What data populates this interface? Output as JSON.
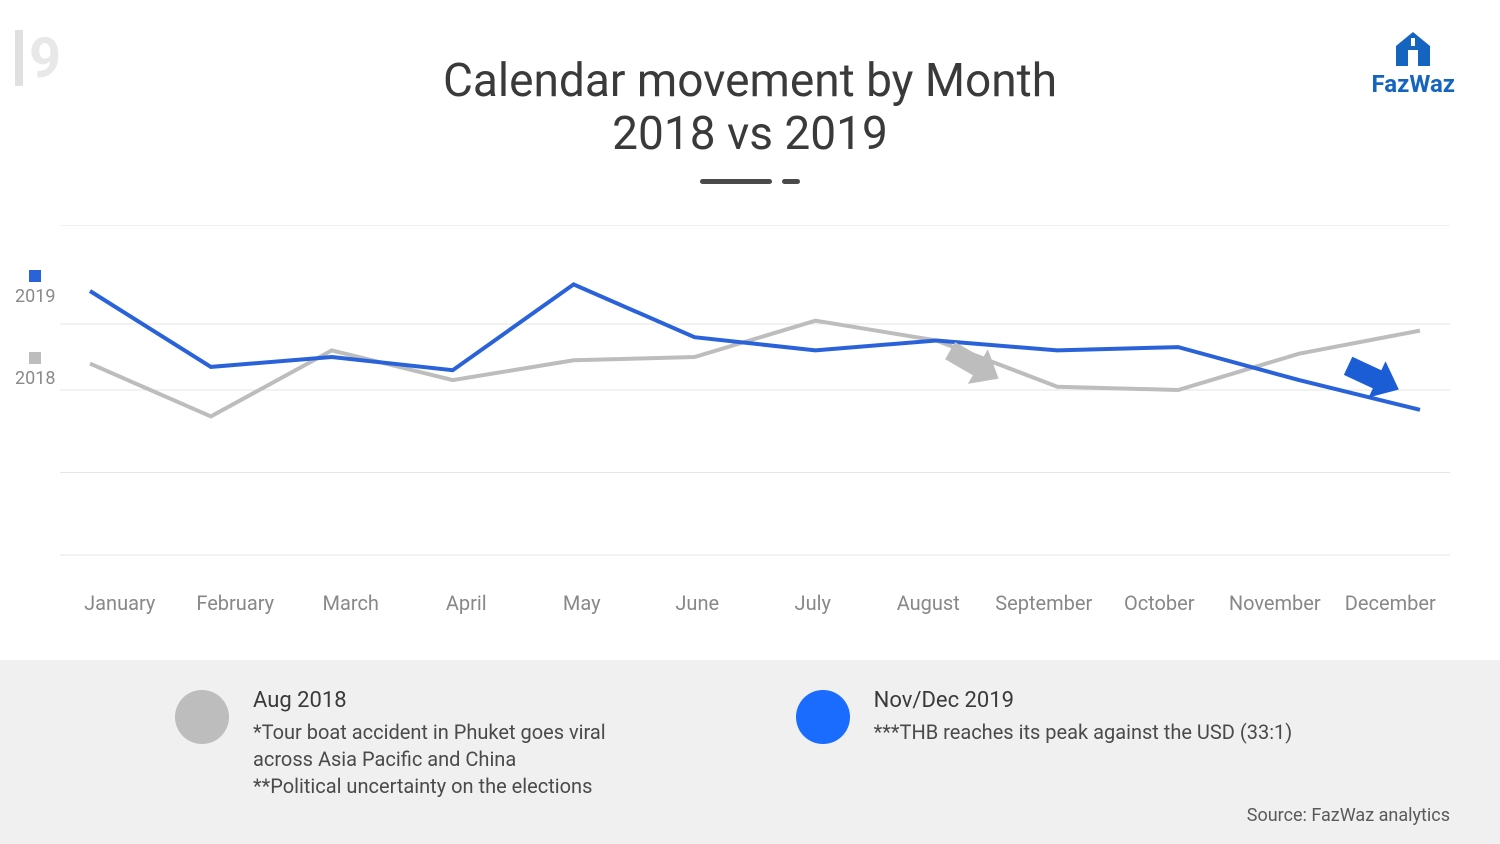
{
  "page_number": "9",
  "logo": {
    "text": "FazWaz",
    "color": "#1565c0"
  },
  "title": {
    "line1": "Calendar movement by Month",
    "line2": "2018 vs 2019",
    "fontsize": 46,
    "color": "#3a3a3a"
  },
  "chart": {
    "type": "line",
    "months": [
      "January",
      "February",
      "March",
      "April",
      "May",
      "June",
      "July",
      "August",
      "September",
      "October",
      "November",
      "December"
    ],
    "x_label_fontsize": 20,
    "x_label_color": "#888888",
    "series": {
      "2018": {
        "label": "2018",
        "color": "#bdbdbd",
        "line_width": 4,
        "values": [
          58,
          42,
          62,
          53,
          59,
          60,
          71,
          65,
          51,
          50,
          61,
          68
        ]
      },
      "2019": {
        "label": "2019",
        "color": "#2962d9",
        "line_width": 4,
        "values": [
          80,
          57,
          60,
          56,
          82,
          66,
          62,
          65,
          62,
          63,
          53,
          44
        ]
      }
    },
    "ylim": [
      0,
      100
    ],
    "gridlines_y": [
      0,
      25,
      50,
      70,
      100
    ],
    "grid_color": "#e5e5e5",
    "background_color": "#ffffff",
    "arrows": {
      "2018": {
        "x_index": 7.3,
        "y": 58,
        "angle": 30,
        "color": "#bdbdbd"
      },
      "2019": {
        "x_index": 10.6,
        "y": 54,
        "angle": 25,
        "color": "#1a5dd4"
      }
    }
  },
  "legend": {
    "items": [
      {
        "year": "2019",
        "swatch_color": "#2962d9"
      },
      {
        "year": "2018",
        "swatch_color": "#bdbdbd"
      }
    ],
    "fontsize": 18
  },
  "annotations": [
    {
      "dot_color": "#bdbdbd",
      "title": "Aug 2018",
      "lines": [
        "*Tour boat accident in Phuket goes viral",
        "across Asia Pacific and China",
        "**Political uncertainty on the elections"
      ]
    },
    {
      "dot_color": "#1a6bff",
      "title": "Nov/Dec 2019",
      "lines": [
        "***THB reaches its peak against the USD (33:1)"
      ]
    }
  ],
  "source": "Source: FazWaz analytics",
  "footer_bg": "#f0f0f0"
}
